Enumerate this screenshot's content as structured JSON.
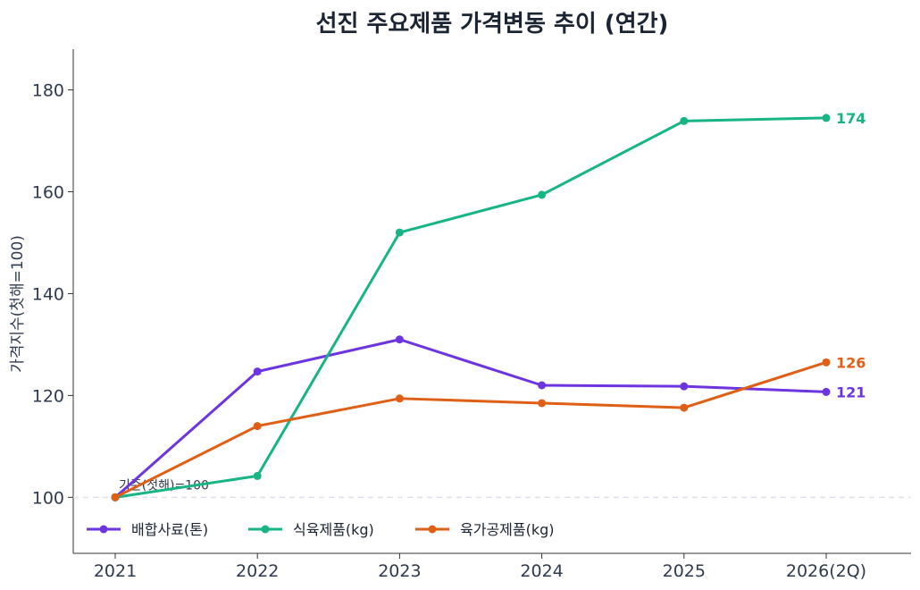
{
  "chart_data": {
    "type": "line",
    "title": "선진 주요제품 가격변동 추이 (연간)",
    "xlabel": "",
    "ylabel": "가격지수(첫해=100)",
    "categories": [
      "2021",
      "2022",
      "2023",
      "2024",
      "2025",
      "2026(2Q)"
    ],
    "ylim": [
      89,
      188
    ],
    "yticks": [
      100,
      120,
      140,
      160,
      180
    ],
    "grid": false,
    "legend_position": "bottom-left",
    "baseline": {
      "value": 100,
      "label": "기준(첫해)=100"
    },
    "series": [
      {
        "name": "배합사료(톤)",
        "color": "#6d35e0",
        "values": [
          100,
          124.7,
          131.0,
          122.0,
          121.8,
          120.7
        ],
        "end_label": "121"
      },
      {
        "name": "식육제품(kg)",
        "color": "#17b584",
        "values": [
          100,
          104.2,
          152.0,
          159.4,
          173.9,
          174.5
        ],
        "end_label": "174"
      },
      {
        "name": "육가공제품(kg)",
        "color": "#e05f16",
        "values": [
          100,
          114.0,
          119.4,
          118.5,
          117.6,
          126.5
        ],
        "end_label": "126"
      }
    ]
  }
}
